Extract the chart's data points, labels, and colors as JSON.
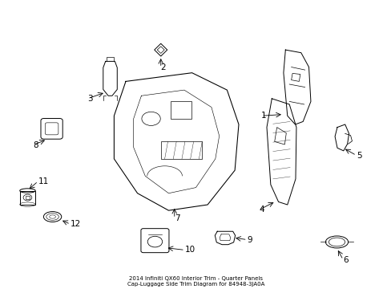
{
  "title": "2014 Infiniti QX60 Interior Trim - Quarter Panels\nCap-Luggage Side Trim Diagram for 84948-3JA0A",
  "bg_color": "#ffffff",
  "line_color": "#000000",
  "fig_width": 4.89,
  "fig_height": 3.6,
  "dpi": 100
}
